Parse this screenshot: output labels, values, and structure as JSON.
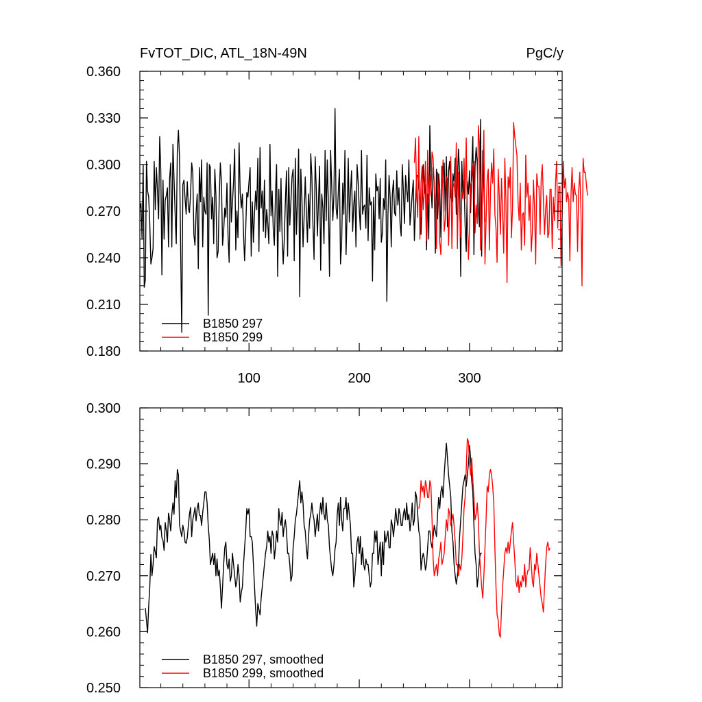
{
  "figure": {
    "title": "FvTOT_DIC, ATL_18N-49N",
    "units": "PgC/y"
  },
  "colors": {
    "series_297": "#000000",
    "series_299": "#ff0000",
    "axis": "#000000"
  },
  "chart_data": [
    {
      "type": "line",
      "xlim": [
        1,
        384
      ],
      "ylim": [
        0.18,
        0.36
      ],
      "x_ticks": [
        100,
        200,
        300
      ],
      "x_tick_labels": [
        "100",
        "200",
        "300"
      ],
      "y_ticks": [
        0.18,
        0.21,
        0.24,
        0.27,
        0.3,
        0.33,
        0.36
      ],
      "y_tick_labels": [
        "0.180",
        "0.210",
        "0.240",
        "0.270",
        "0.300",
        "0.330",
        "0.360"
      ],
      "legend_position": "bottom-left",
      "series": [
        {
          "name": "B1850 297",
          "color": "#000000",
          "x_start": 1,
          "values": [
            0.272,
            0.275,
            0.252,
            0.3,
            0.221,
            0.226,
            0.302,
            0.283,
            0.279,
            0.262,
            0.236,
            0.24,
            0.246,
            0.302,
            0.271,
            0.298,
            0.283,
            0.265,
            0.318,
            0.296,
            0.229,
            0.29,
            0.252,
            0.277,
            0.28,
            0.285,
            0.247,
            0.291,
            0.301,
            0.247,
            0.313,
            0.291,
            0.268,
            0.249,
            0.309,
            0.322,
            0.304,
            0.245,
            0.192,
            0.287,
            0.29,
            0.278,
            0.268,
            0.289,
            0.272,
            0.269,
            0.281,
            0.301,
            0.295,
            0.255,
            0.248,
            0.269,
            0.281,
            0.233,
            0.298,
            0.276,
            0.303,
            0.247,
            0.279,
            0.27,
            0.268,
            0.301,
            0.203,
            0.3,
            0.298,
            0.265,
            0.279,
            0.249,
            0.297,
            0.28,
            0.24,
            0.244,
            0.278,
            0.301,
            0.289,
            0.248,
            0.257,
            0.272,
            0.266,
            0.288,
            0.254,
            0.237,
            0.3,
            0.263,
            0.276,
            0.289,
            0.31,
            0.245,
            0.27,
            0.253,
            0.314,
            0.282,
            0.272,
            0.281,
            0.256,
            0.238,
            0.258,
            0.282,
            0.279,
            0.289,
            0.298,
            0.241,
            0.276,
            0.25,
            0.269,
            0.283,
            0.271,
            0.304,
            0.244,
            0.311,
            0.272,
            0.283,
            0.257,
            0.29,
            0.253,
            0.271,
            0.262,
            0.249,
            0.313,
            0.267,
            0.283,
            0.258,
            0.248,
            0.281,
            0.3,
            0.228,
            0.284,
            0.257,
            0.291,
            0.255,
            0.236,
            0.252,
            0.277,
            0.296,
            0.241,
            0.298,
            0.261,
            0.276,
            0.292,
            0.297,
            0.238,
            0.304,
            0.255,
            0.278,
            0.31,
            0.215,
            0.297,
            0.278,
            0.247,
            0.267,
            0.292,
            0.27,
            0.25,
            0.281,
            0.259,
            0.307,
            0.293,
            0.261,
            0.239,
            0.305,
            0.285,
            0.254,
            0.276,
            0.299,
            0.232,
            0.281,
            0.272,
            0.249,
            0.309,
            0.264,
            0.303,
            0.274,
            0.228,
            0.309,
            0.287,
            0.264,
            0.28,
            0.336,
            0.272,
            0.265,
            0.283,
            0.297,
            0.236,
            0.249,
            0.288,
            0.268,
            0.309,
            0.242,
            0.27,
            0.304,
            0.263,
            0.282,
            0.296,
            0.257,
            0.274,
            0.283,
            0.247,
            0.3,
            0.289,
            0.271,
            0.258,
            0.309,
            0.268,
            0.273,
            0.274,
            0.259,
            0.306,
            0.251,
            0.285,
            0.274,
            0.276,
            0.225,
            0.279,
            0.245,
            0.294,
            0.283,
            0.286,
            0.265,
            0.291,
            0.25,
            0.256,
            0.278,
            0.271,
            0.303,
            0.212,
            0.267,
            0.293,
            0.279,
            0.247,
            0.281,
            0.29,
            0.269,
            0.267,
            0.296,
            0.274,
            0.285,
            0.262,
            0.254,
            0.3,
            0.283,
            0.262,
            0.293,
            0.284,
            0.276,
            0.303,
            0.261,
            0.27,
            0.281,
            0.29,
            0.251,
            0.272,
            0.293,
            0.293,
            0.287,
            0.278,
            0.255,
            0.28,
            0.3,
            0.281,
            0.287,
            0.245,
            0.281,
            0.252,
            0.325,
            0.288,
            0.272,
            0.298,
            0.289,
            0.243,
            0.297,
            0.265,
            0.294,
            0.284,
            0.253,
            0.299,
            0.291,
            0.301,
            0.27,
            0.305,
            0.26,
            0.296,
            0.302,
            0.279,
            0.276,
            0.294,
            0.288,
            0.304,
            0.268,
            0.29,
            0.31,
            0.294,
            0.228,
            0.302,
            0.279,
            0.29,
            0.261,
            0.244,
            0.289,
            0.281,
            0.296,
            0.269,
            0.298,
            0.318,
            0.242,
            0.299,
            0.311,
            0.301,
            0.271,
            0.26,
            0.329,
            0.241,
            0.309,
            0.285,
            0.263
          ]
        },
        {
          "name": "B1850 299",
          "color": "#ff0000",
          "x_start": 250,
          "values": [
            0.301,
            0.317,
            0.283,
            0.266,
            0.318,
            0.252,
            0.288,
            0.299,
            0.271,
            0.282,
            0.302,
            0.251,
            0.309,
            0.275,
            0.293,
            0.28,
            0.308,
            0.304,
            0.286,
            0.271,
            0.246,
            0.295,
            0.281,
            0.25,
            0.242,
            0.278,
            0.303,
            0.257,
            0.264,
            0.292,
            0.291,
            0.248,
            0.276,
            0.305,
            0.246,
            0.285,
            0.289,
            0.279,
            0.314,
            0.246,
            0.295,
            0.27,
            0.253,
            0.282,
            0.278,
            0.304,
            0.278,
            0.317,
            0.27,
            0.239,
            0.259,
            0.287,
            0.289,
            0.299,
            0.302,
            0.256,
            0.274,
            0.262,
            0.325,
            0.313,
            0.245,
            0.255,
            0.294,
            0.322,
            0.236,
            0.263,
            0.291,
            0.297,
            0.245,
            0.282,
            0.301,
            0.288,
            0.31,
            0.268,
            0.259,
            0.237,
            0.297,
            0.279,
            0.255,
            0.291,
            0.269,
            0.243,
            0.304,
            0.278,
            0.224,
            0.292,
            0.285,
            0.298,
            0.253,
            0.272,
            0.327,
            0.318,
            0.312,
            0.306,
            0.276,
            0.264,
            0.288,
            0.245,
            0.268,
            0.269,
            0.248,
            0.306,
            0.279,
            0.288,
            0.264,
            0.28,
            0.244,
            0.257,
            0.29,
            0.271,
            0.236,
            0.294,
            0.286,
            0.286,
            0.255,
            0.291,
            0.3,
            0.278,
            0.255,
            0.271,
            0.28,
            0.253,
            0.256,
            0.284,
            0.284,
            0.246,
            0.279,
            0.264,
            0.288,
            0.302,
            0.259,
            0.286,
            0.286,
            0.235,
            0.268,
            0.302,
            0.285,
            0.291,
            0.276,
            0.282,
            0.278,
            0.238,
            0.28,
            0.298,
            0.276,
            0.288,
            0.281,
            0.28,
            0.244,
            0.283,
            0.295,
            0.273,
            0.222,
            0.304,
            0.295,
            0.295,
            0.287,
            0.28
          ]
        }
      ]
    },
    {
      "type": "line",
      "xlim": [
        1,
        384
      ],
      "ylim": [
        0.25,
        0.3
      ],
      "x_ticks": [
        100,
        200,
        300
      ],
      "x_tick_labels": [],
      "y_ticks": [
        0.25,
        0.26,
        0.27,
        0.28,
        0.29,
        0.3
      ],
      "y_tick_labels": [
        "0.250",
        "0.260",
        "0.270",
        "0.280",
        "0.290",
        "0.300"
      ],
      "legend_position": "bottom-left",
      "series": [
        {
          "name": "B1850 297, smoothed",
          "color": "#000000",
          "x_start": 6,
          "values": [
            0.2642,
            0.262,
            0.2598,
            0.2645,
            0.268,
            0.2738,
            0.27,
            0.272,
            0.2752,
            0.2742,
            0.2732,
            0.28,
            0.2805,
            0.2782,
            0.279,
            0.2768,
            0.2763,
            0.2745,
            0.2795,
            0.278,
            0.276,
            0.2812,
            0.28,
            0.278,
            0.281,
            0.283,
            0.281,
            0.287,
            0.284,
            0.289,
            0.288,
            0.279,
            0.278,
            0.277,
            0.279,
            0.278,
            0.276,
            0.2758,
            0.2768,
            0.279,
            0.281,
            0.2822,
            0.277,
            0.28,
            0.281,
            0.2822,
            0.2798,
            0.282,
            0.283,
            0.2808,
            0.2808,
            0.279,
            0.2813,
            0.283,
            0.285,
            0.285,
            0.283,
            0.279,
            0.2764,
            0.272,
            0.273,
            0.274,
            0.272,
            0.274,
            0.27,
            0.273,
            0.27,
            0.271,
            0.268,
            0.2642,
            0.268,
            0.272,
            0.275,
            0.276,
            0.272,
            0.2712,
            0.273,
            0.269,
            0.27,
            0.274,
            0.272,
            0.27,
            0.268,
            0.269,
            0.272,
            0.27,
            0.2653,
            0.267,
            0.268,
            0.272,
            0.275,
            0.278,
            0.282,
            0.281,
            0.282,
            0.277,
            0.277,
            0.276,
            0.272,
            0.268,
            0.264,
            0.261,
            0.265,
            0.264,
            0.263,
            0.266,
            0.268,
            0.27,
            0.272,
            0.274,
            0.2752,
            0.278,
            0.276,
            0.277,
            0.274,
            0.278,
            0.2772,
            0.273,
            0.275,
            0.278,
            0.276,
            0.282,
            0.28,
            0.279,
            0.2813,
            0.277,
            0.279,
            0.28,
            0.278,
            0.274,
            0.274,
            0.272,
            0.269,
            0.27,
            0.275,
            0.277,
            0.28,
            0.281,
            0.283,
            0.285,
            0.287,
            0.283,
            0.285,
            0.283,
            0.279,
            0.278,
            0.275,
            0.273,
            0.277,
            0.28,
            0.281,
            0.283,
            0.281,
            0.28,
            0.277,
            0.279,
            0.281,
            0.278,
            0.281,
            0.283,
            0.281,
            0.284,
            0.281,
            0.28,
            0.283,
            0.28,
            0.279,
            0.275,
            0.273,
            0.271,
            0.27,
            0.2718,
            0.2748,
            0.276,
            0.281,
            0.283,
            0.279,
            0.284,
            0.28,
            0.278,
            0.282,
            0.282,
            0.284,
            0.28,
            0.283,
            0.281,
            0.279,
            0.274,
            0.274,
            0.268,
            0.27,
            0.273,
            0.276,
            0.277,
            0.274,
            0.277,
            0.272,
            0.275,
            0.272,
            0.271,
            0.273,
            0.272,
            0.272,
            0.27,
            0.268,
            0.269,
            0.274,
            0.274,
            0.278,
            0.276,
            0.278,
            0.272,
            0.274,
            0.276,
            0.27,
            0.276,
            0.272,
            0.278,
            0.276,
            0.277,
            0.278,
            0.275,
            0.275,
            0.28,
            0.279,
            0.277,
            0.279,
            0.282,
            0.28,
            0.279,
            0.282,
            0.281,
            0.279,
            0.279,
            0.281,
            0.282,
            0.28,
            0.283,
            0.28,
            0.281,
            0.278,
            0.28,
            0.283,
            0.279,
            0.28,
            0.285,
            0.284,
            0.281,
            0.278,
            0.277,
            0.271,
            0.273,
            0.274,
            0.273,
            0.271,
            0.272,
            0.275,
            0.278,
            0.278,
            0.276,
            0.275,
            0.277,
            0.279,
            0.278,
            0.277,
            0.281,
            0.284,
            0.282,
            0.285,
            0.286,
            0.284,
            0.288,
            0.291,
            0.2937,
            0.291,
            0.288,
            0.286,
            0.284,
            0.278,
            0.276,
            0.272,
            0.27,
            0.2685,
            0.27,
            0.272,
            0.277,
            0.28,
            0.283,
            0.286,
            0.287,
            0.288,
            0.286,
            0.288,
            0.29,
            0.2933,
            0.291,
            0.287,
            0.285,
            0.279,
            0.274,
            0.272,
            0.268,
            0.27,
            0.273,
            0.274,
            0.274
          ]
        },
        {
          "name": "B1850 299, smoothed",
          "color": "#ff0000",
          "x_start": 254,
          "values": [
            0.282,
            0.283,
            0.287,
            0.285,
            0.286,
            0.284,
            0.287,
            0.286,
            0.284,
            0.284,
            0.287,
            0.286,
            0.28,
            0.273,
            0.27,
            0.271,
            0.272,
            0.27,
            0.273,
            0.274,
            0.276,
            0.272,
            0.273,
            0.274,
            0.277,
            0.28,
            0.278,
            0.282,
            0.281,
            0.279,
            0.28,
            0.281,
            0.279,
            0.276,
            0.272,
            0.272,
            0.27,
            0.272,
            0.271,
            0.273,
            0.277,
            0.282,
            0.284,
            0.289,
            0.2945,
            0.294,
            0.29,
            0.288,
            0.291,
            0.287,
            0.284,
            0.28,
            0.281,
            0.283,
            0.28,
            0.274,
            0.271,
            0.268,
            0.266,
            0.27,
            0.275,
            0.28,
            0.286,
            0.285,
            0.288,
            0.289,
            0.288,
            0.286,
            0.283,
            0.275,
            0.268,
            0.263,
            0.262,
            0.2595,
            0.259,
            0.264,
            0.268,
            0.271,
            0.274,
            0.275,
            0.274,
            0.276,
            0.274,
            0.276,
            0.278,
            0.2795,
            0.276,
            0.273,
            0.269,
            0.268,
            0.27,
            0.267,
            0.269,
            0.268,
            0.27,
            0.269,
            0.272,
            0.268,
            0.27,
            0.271,
            0.271,
            0.275,
            0.272,
            0.269,
            0.268,
            0.272,
            0.271,
            0.274,
            0.272,
            0.27,
            0.268,
            0.266,
            0.265,
            0.2635,
            0.268,
            0.272,
            0.275,
            0.276,
            0.2745,
            0.275
          ]
        }
      ]
    }
  ]
}
